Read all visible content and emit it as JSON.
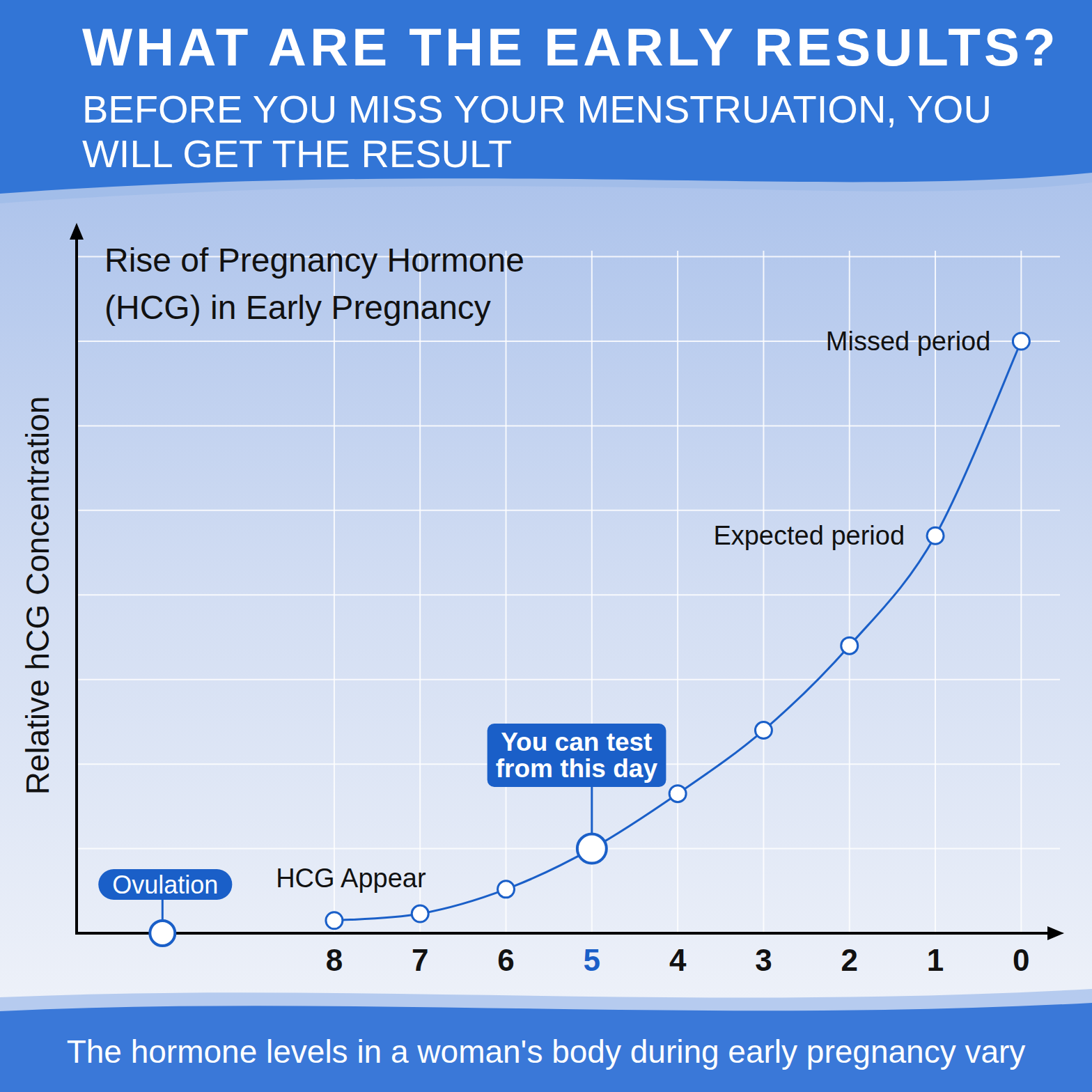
{
  "header": {
    "title": "WHAT ARE THE EARLY RESULTS?",
    "subtitle": "BEFORE YOU MISS YOUR MENSTRUATION, YOU WILL GET THE RESULT"
  },
  "chart_data": {
    "type": "line",
    "title": "Rise of Pregnancy Hormone (HCG) in Early Pregnancy",
    "ylabel": "Relative hCG Concentration",
    "x": [
      8,
      7,
      6,
      5,
      4,
      3,
      2,
      1,
      0
    ],
    "values": [
      0.15,
      0.23,
      0.52,
      1.0,
      1.65,
      2.4,
      3.4,
      4.7,
      7.0
    ],
    "color": "#1a5fc8",
    "marker": "circle",
    "xlim": [
      11,
      -0.5
    ],
    "xticks": [
      8,
      7,
      6,
      5,
      4,
      3,
      2,
      1,
      0
    ],
    "ylim": [
      0,
      8.4
    ],
    "yticks": [
      0,
      1,
      2,
      3,
      4,
      5,
      6,
      7,
      8
    ],
    "grid": true,
    "tick_labels": "x",
    "annotations": [
      {
        "text": "Ovulation",
        "x": 10,
        "y": 0
      },
      {
        "text": "HCG Appear",
        "x": 8,
        "y": 0.15
      },
      {
        "text": "You can test from this day",
        "x": 5,
        "y": 1.0
      },
      {
        "text": "Expected period",
        "x": 1,
        "y": 4.7
      },
      {
        "text": "Missed period",
        "x": 0,
        "y": 7.0
      }
    ]
  },
  "footer": "The hormone levels in a woman's body during early pregnancy vary"
}
